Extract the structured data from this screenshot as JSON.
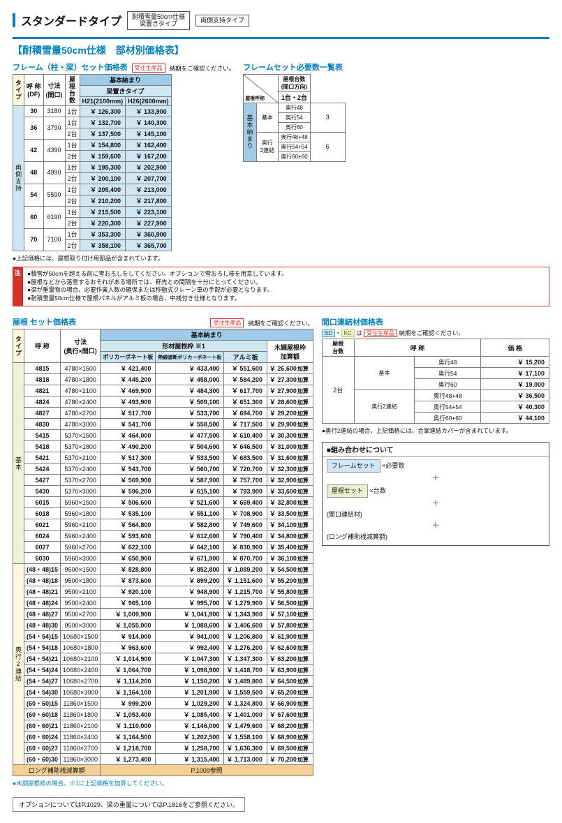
{
  "header": {
    "title": "スタンダードタイプ",
    "pill1": "耐積雪量50cm仕様\n梁置きタイプ",
    "pill2": "両側支持タイプ"
  },
  "section_title": "【耐積雪量50cm仕様　部材別価格表】",
  "frame": {
    "title": "フレーム（柱・梁）セット価格表",
    "badge_note": "納期をご確認ください。",
    "badge": "受注生産品",
    "h_top": "基本納まり",
    "h_sub": "梁置きタイプ",
    "cols": {
      "type": "タイプ",
      "name": "呼 称\n(DF)",
      "dim": "寸法\n(間口)",
      "cnt": "屋根台数",
      "h21": "H21(2100mm)",
      "h26": "H26(2600mm)"
    },
    "side": "両側支持",
    "rows": [
      {
        "df": "30",
        "dim": "3180",
        "sub": [
          {
            "n": "1台",
            "p1": "126,300",
            "p2": "133,900"
          }
        ]
      },
      {
        "df": "36",
        "dim": "3790",
        "sub": [
          {
            "n": "1台",
            "p1": "132,700",
            "p2": "140,300"
          },
          {
            "n": "2台",
            "p1": "137,500",
            "p2": "145,100"
          }
        ]
      },
      {
        "df": "42",
        "dim": "4390",
        "sub": [
          {
            "n": "1台",
            "p1": "154,800",
            "p2": "162,400"
          },
          {
            "n": "2台",
            "p1": "159,600",
            "p2": "167,200"
          }
        ]
      },
      {
        "df": "48",
        "dim": "4990",
        "sub": [
          {
            "n": "1台",
            "p1": "195,300",
            "p2": "202,900"
          },
          {
            "n": "2台",
            "p1": "200,100",
            "p2": "207,700"
          }
        ]
      },
      {
        "df": "54",
        "dim": "5590",
        "sub": [
          {
            "n": "1台",
            "p1": "205,400",
            "p2": "213,000"
          },
          {
            "n": "2台",
            "p1": "210,200",
            "p2": "217,800"
          }
        ]
      },
      {
        "df": "60",
        "dim": "6190",
        "sub": [
          {
            "n": "1台",
            "p1": "215,500",
            "p2": "223,100"
          },
          {
            "n": "2台",
            "p1": "220,300",
            "p2": "227,900"
          }
        ]
      },
      {
        "df": "70",
        "dim": "7100",
        "sub": [
          {
            "n": "1台",
            "p1": "353,300",
            "p2": "360,900"
          },
          {
            "n": "2台",
            "p1": "358,100",
            "p2": "365,700"
          }
        ]
      }
    ],
    "footnote": "●上記価格には、屋根取り付け用部品が含まれています。"
  },
  "frameset_req": {
    "title": "フレームセット必要数一覧表",
    "h1": "屋根台数\n(間口方向)",
    "h2": "1台・2台",
    "h_side": "屋根呼称",
    "h_vert": "基本納まり",
    "groups": [
      {
        "name": "基本",
        "rows": [
          "奥行48",
          "奥行54",
          "奥行60"
        ],
        "val": "3"
      },
      {
        "name": "奥行\n2連結",
        "rows": [
          "奥行48+48",
          "奥行54+54",
          "奥行60+60"
        ],
        "val": "6"
      }
    ]
  },
  "warn": {
    "label": "注",
    "lines": [
      "●積雪が50cmを超える前に雪おろしをしてください。オプションで雪おろし棒を用意しています。",
      "●屋根などから落雪するおそれがある場所では、軒先との間隔を十分にとってください。",
      "●梁が重量物の場合、必要作業人数の確保または移動式クレーン車の手配が必要となります。",
      "●耐積雪量50cm仕様で屋根パネルがアルミ板の場合、中桟付き仕様となります。"
    ]
  },
  "roof": {
    "title": "屋根 セット価格表",
    "badge": "受注生産品",
    "badge_note": "納期をご確認ください。",
    "h_top": "基本納まり",
    "h_sub": "形材屋根枠 ※1",
    "cols": {
      "type": "タイプ",
      "name": "呼 称",
      "dim": "寸法\n(奥行×間口)",
      "c1": "ポリカーボネート板",
      "c2": "熱線遮断ポリカーボネート板",
      "c3": "アルミ板",
      "c4": "木調屋根枠\n加算額"
    },
    "groups": [
      {
        "name": "基本",
        "bg": "bg-greenL",
        "rows": [
          {
            "n": "4815",
            "d": "4780×1500",
            "p": [
              "421,400",
              "433,400",
              "551,600",
              "26,600"
            ]
          },
          {
            "n": "4818",
            "d": "4780×1800",
            "p": [
              "445,200",
              "458,000",
              "584,200",
              "27,300"
            ]
          },
          {
            "n": "4821",
            "d": "4780×2100",
            "p": [
              "469,900",
              "484,300",
              "617,700",
              "27,900"
            ]
          },
          {
            "n": "4824",
            "d": "4780×2400",
            "p": [
              "493,900",
              "509,100",
              "651,300",
              "28,600"
            ]
          },
          {
            "n": "4827",
            "d": "4780×2700",
            "p": [
              "517,700",
              "533,700",
              "684,700",
              "29,200"
            ]
          },
          {
            "n": "4830",
            "d": "4780×3000",
            "p": [
              "541,700",
              "558,500",
              "717,500",
              "29,900"
            ]
          },
          {
            "n": "5415",
            "d": "5370×1500",
            "p": [
              "464,000",
              "477,500",
              "610,400",
              "30,300"
            ]
          },
          {
            "n": "5418",
            "d": "5370×1800",
            "p": [
              "490,200",
              "504,600",
              "646,500",
              "31,000"
            ]
          },
          {
            "n": "5421",
            "d": "5370×2100",
            "p": [
              "517,300",
              "533,500",
              "683,500",
              "31,600"
            ]
          },
          {
            "n": "5424",
            "d": "5370×2400",
            "p": [
              "543,700",
              "560,700",
              "720,700",
              "32,300"
            ]
          },
          {
            "n": "5427",
            "d": "5370×2700",
            "p": [
              "569,900",
              "587,900",
              "757,700",
              "32,900"
            ]
          },
          {
            "n": "5430",
            "d": "5370×3000",
            "p": [
              "596,200",
              "615,100",
              "793,900",
              "33,600"
            ]
          },
          {
            "n": "6015",
            "d": "5960×1500",
            "p": [
              "506,600",
              "521,600",
              "669,400",
              "32,800"
            ]
          },
          {
            "n": "6018",
            "d": "5960×1800",
            "p": [
              "535,100",
              "551,100",
              "708,900",
              "33,500"
            ]
          },
          {
            "n": "6021",
            "d": "5960×2100",
            "p": [
              "564,800",
              "582,800",
              "749,600",
              "34,100"
            ]
          },
          {
            "n": "6024",
            "d": "5960×2400",
            "p": [
              "593,600",
              "612,600",
              "790,400",
              "34,800"
            ]
          },
          {
            "n": "6027",
            "d": "5960×2700",
            "p": [
              "622,100",
              "642,100",
              "830,900",
              "35,400"
            ]
          },
          {
            "n": "6030",
            "d": "5960×3000",
            "p": [
              "650,900",
              "671,900",
              "870,700",
              "36,100"
            ]
          }
        ]
      },
      {
        "name": "奥行2連結",
        "bg": "bg-cream",
        "rows": [
          {
            "n": "(48・48)15",
            "d": "9500×1500",
            "p": [
              "828,800",
              "852,800",
              "1,089,200",
              "54,500"
            ]
          },
          {
            "n": "(48・48)18",
            "d": "9500×1800",
            "p": [
              "873,600",
              "899,200",
              "1,151,600",
              "55,200"
            ]
          },
          {
            "n": "(48・48)21",
            "d": "9500×2100",
            "p": [
              "920,100",
              "948,900",
              "1,215,700",
              "55,800"
            ]
          },
          {
            "n": "(48・48)24",
            "d": "9500×2400",
            "p": [
              "965,100",
              "995,700",
              "1,279,900",
              "56,500"
            ]
          },
          {
            "n": "(48・48)27",
            "d": "9500×2700",
            "p": [
              "1,009,900",
              "1,041,900",
              "1,343,900",
              "57,100"
            ]
          },
          {
            "n": "(48・48)30",
            "d": "9500×3000",
            "p": [
              "1,055,000",
              "1,088,600",
              "1,406,600",
              "57,800"
            ]
          },
          {
            "n": "(54・54)15",
            "d": "10680×1500",
            "p": [
              "914,000",
              "941,000",
              "1,206,800",
              "61,900"
            ]
          },
          {
            "n": "(54・54)18",
            "d": "10680×1800",
            "p": [
              "963,600",
              "992,400",
              "1,276,200",
              "62,600"
            ]
          },
          {
            "n": "(54・54)21",
            "d": "10680×2100",
            "p": [
              "1,014,900",
              "1,047,300",
              "1,347,300",
              "63,200"
            ]
          },
          {
            "n": "(54・54)24",
            "d": "10680×2400",
            "p": [
              "1,064,700",
              "1,098,900",
              "1,418,700",
              "63,900"
            ]
          },
          {
            "n": "(54・54)27",
            "d": "10680×2700",
            "p": [
              "1,114,200",
              "1,150,200",
              "1,489,800",
              "64,500"
            ]
          },
          {
            "n": "(54・54)30",
            "d": "10680×3000",
            "p": [
              "1,164,100",
              "1,201,900",
              "1,559,500",
              "65,200"
            ]
          },
          {
            "n": "(60・60)15",
            "d": "11860×1500",
            "p": [
              "999,200",
              "1,029,200",
              "1,324,800",
              "66,900"
            ]
          },
          {
            "n": "(60・60)18",
            "d": "11860×1800",
            "p": [
              "1,053,400",
              "1,085,400",
              "1,401,000",
              "67,600"
            ]
          },
          {
            "n": "(60・60)21",
            "d": "11860×2100",
            "p": [
              "1,110,000",
              "1,146,000",
              "1,479,600",
              "68,200"
            ]
          },
          {
            "n": "(60・60)24",
            "d": "11860×2400",
            "p": [
              "1,164,500",
              "1,202,500",
              "1,558,100",
              "68,900"
            ]
          },
          {
            "n": "(60・60)27",
            "d": "11860×2700",
            "p": [
              "1,218,700",
              "1,258,700",
              "1,636,300",
              "69,500"
            ]
          },
          {
            "n": "(60・60)30",
            "d": "11860×3000",
            "p": [
              "1,273,400",
              "1,315,400",
              "1,713,000",
              "70,200"
            ]
          }
        ]
      }
    ],
    "foot_left": "ロング補助桟減算額",
    "foot_right": "P.1009参照",
    "footnote": "●木調屋根枠の場合、※1に上記価格を加算してください。",
    "suffix": "加算"
  },
  "joint": {
    "title": "間口連結材価格表",
    "pre_note": "は",
    "post_note": "納期をご確認ください。",
    "badge": "受注生産品",
    "cols": {
      "cnt": "屋根\n台数",
      "name": "呼 称",
      "price": "価 格"
    },
    "side": "2台",
    "groups": [
      {
        "name": "基本",
        "rows": [
          {
            "n": "奥行48",
            "p": "15,200"
          },
          {
            "n": "奥行54",
            "p": "17,100"
          },
          {
            "n": "奥行60",
            "p": "19,000"
          }
        ]
      },
      {
        "name": "奥行2連結",
        "rows": [
          {
            "n": "奥行48+48",
            "p": "36,500"
          },
          {
            "n": "奥行54+54",
            "p": "40,300"
          },
          {
            "n": "奥行60+60",
            "p": "44,100"
          }
        ]
      }
    ],
    "footnote": "●奥行2連結の場合、上記価格には、合掌連結カバーが含まれています。"
  },
  "combo": {
    "title": "■組み合わせについて",
    "items": [
      "フレームセット",
      "×必要数",
      "屋根セット",
      "×台数",
      "(間口連結材)",
      "(ロング補助桟減算額)"
    ],
    "plus": "＋"
  },
  "bottom_note": "オプションについてはP.1029、梁の重量についてはP.1816をご参照ください。"
}
